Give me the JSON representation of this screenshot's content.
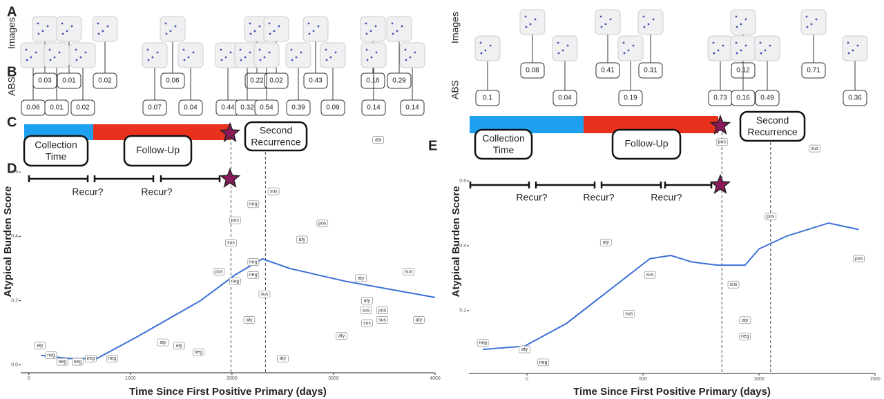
{
  "panel_labels": [
    "A",
    "B",
    "C",
    "D",
    "E"
  ],
  "row_labels": {
    "images": "Images",
    "abs": "ABS"
  },
  "left": {
    "abs_top": [
      "0.03",
      "0.01",
      "0.02",
      "0.06",
      "0.22",
      "0.02",
      "0.43",
      "0.16",
      "0.29"
    ],
    "abs_bottom": [
      "0.06",
      "0.01",
      "0.02",
      "0.07",
      "0.04",
      "0.44",
      "0.32",
      "0.54",
      "0.39",
      "0.09",
      "0.14",
      "0.14"
    ],
    "timeline": {
      "collection": "Collection Time",
      "follow_up": "Follow-Up",
      "second": "Second Recurrence",
      "recur": [
        "Recur?",
        "Recur?"
      ]
    }
  },
  "right": {
    "abs_top": [
      "0.08",
      "0.41",
      "0.31",
      "0.12",
      "0.71"
    ],
    "abs_bottom": [
      "0.1",
      "0.04",
      "0.19",
      "0.73",
      "0.16",
      "0.49",
      "0.36"
    ],
    "timeline": {
      "collection": "Collection Time",
      "follow_up": "Follow-Up",
      "second": "Second Recurrence",
      "recur": [
        "Recur?",
        "Recur?",
        "Recur?"
      ]
    }
  },
  "chart_data": [
    {
      "type": "scatter",
      "xlabel": "Time Since First Positive Primary (days)",
      "ylabel": "Atypical Burden Score",
      "xlim": [
        -80,
        4000
      ],
      "ylim": [
        -0.02,
        0.74
      ],
      "xticks": [
        0,
        1000,
        2000,
        3000,
        4000
      ],
      "yticks": [
        {
          "value": 0,
          "label": "0.0"
        },
        0.2,
        0.4,
        0.6
      ],
      "point_labels": [
        "aty",
        "neg",
        "neg",
        "neg",
        "neg",
        "neg",
        "aty",
        "aty",
        "neg",
        "pos",
        "neg",
        "pos",
        "sus",
        "neg",
        "neg",
        "neg",
        "sus",
        "aty",
        "aty",
        "sus",
        "pos",
        "aty",
        "aty",
        "aty",
        "sus",
        "pos",
        "sus",
        "sus",
        "aty",
        "sus",
        "aty",
        "aty"
      ],
      "x": [
        110,
        220,
        330,
        480,
        610,
        820,
        1320,
        1480,
        1670,
        1870,
        2210,
        2030,
        1990,
        2210,
        2030,
        2210,
        2320,
        2170,
        2500,
        2410,
        2890,
        2690,
        3270,
        3330,
        3320,
        3480,
        3480,
        3330,
        3080,
        3740,
        3840,
        3440
      ],
      "values": [
        0.06,
        0.03,
        0.01,
        0.01,
        0.02,
        0.02,
        0.07,
        0.06,
        0.04,
        0.29,
        0.5,
        0.45,
        0.38,
        0.32,
        0.26,
        0.28,
        0.22,
        0.14,
        0.02,
        0.54,
        0.44,
        0.39,
        0.27,
        0.2,
        0.17,
        0.17,
        0.14,
        0.13,
        0.09,
        0.29,
        0.14,
        0.7
      ],
      "trend_color": "#3b6fd6",
      "trend_x": [
        120,
        400,
        670,
        1080,
        1690,
        2030,
        2300,
        2570,
        3120,
        4000
      ],
      "trend_values": [
        0.03,
        0.02,
        0.02,
        0.09,
        0.2,
        0.28,
        0.33,
        0.3,
        0.26,
        0.21
      ],
      "vlines": [
        1990,
        2330
      ]
    },
    {
      "type": "scatter",
      "xlabel": "Time Since First Positive Primary (days)",
      "ylabel": "Atypical Burden Score",
      "xlim": [
        -250,
        1500
      ],
      "ylim": [
        0.01,
        0.76
      ],
      "xticks": [
        0,
        500,
        1000,
        1500
      ],
      "yticks": [
        0.2,
        0.4,
        0.6
      ],
      "point_labels": [
        "neg",
        "aty",
        "neg",
        "aty",
        "sus",
        "sus",
        "pos",
        "sus",
        "pos",
        "sus",
        "aty",
        "neg",
        "pos"
      ],
      "x": [
        -190,
        -10,
        70,
        340,
        440,
        530,
        840,
        1240,
        1050,
        890,
        940,
        940,
        1430
      ],
      "values": [
        0.1,
        0.08,
        0.04,
        0.41,
        0.19,
        0.31,
        0.72,
        0.7,
        0.49,
        0.28,
        0.17,
        0.12,
        0.36
      ],
      "trend_color": "#3b6fd6",
      "trend_x": [
        -190,
        -10,
        170,
        350,
        530,
        620,
        710,
        820,
        940,
        1000,
        1120,
        1300,
        1430
      ],
      "trend_values": [
        0.08,
        0.09,
        0.16,
        0.26,
        0.36,
        0.37,
        0.35,
        0.34,
        0.34,
        0.39,
        0.43,
        0.47,
        0.45
      ],
      "vlines": [
        840,
        1050
      ]
    }
  ]
}
